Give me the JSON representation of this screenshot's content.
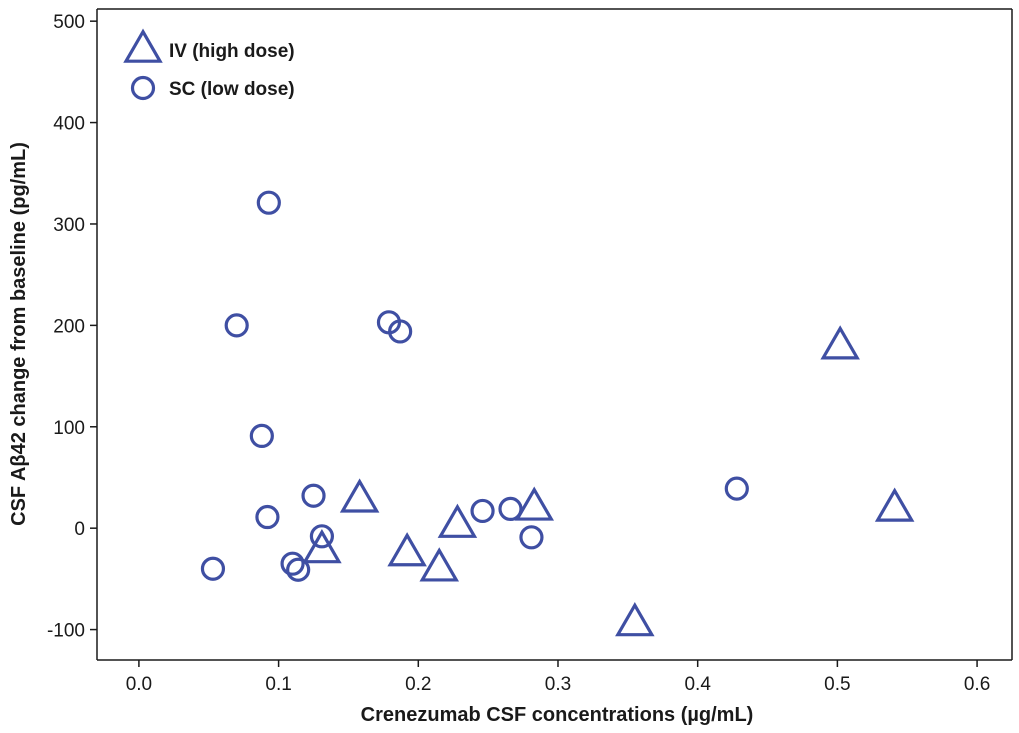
{
  "chart_data": {
    "type": "scatter",
    "xlabel": "Crenezumab CSF concentrations (µg/mL)",
    "ylabel": "CSF Aβ42 change from baseline (pg/mL)",
    "xlim": [
      -0.03,
      0.625
    ],
    "ylim": [
      -130,
      512
    ],
    "x_ticks": [
      0.0,
      0.1,
      0.2,
      0.3,
      0.4,
      0.5,
      0.6
    ],
    "x_tick_labels": [
      "0.0",
      "0.1",
      "0.2",
      "0.3",
      "0.4",
      "0.5",
      "0.6"
    ],
    "y_ticks": [
      -100,
      0,
      100,
      200,
      300,
      400,
      500
    ],
    "y_tick_labels": [
      "-100",
      "0",
      "100",
      "200",
      "300",
      "400",
      "500"
    ],
    "grid": false,
    "legend_position": "top-left",
    "marker_color": "#3f4fa3",
    "series": [
      {
        "name": "IV (high dose)",
        "marker": "triangle",
        "points": [
          {
            "x": 0.158,
            "y": 28
          },
          {
            "x": 0.131,
            "y": -22
          },
          {
            "x": 0.192,
            "y": -25
          },
          {
            "x": 0.215,
            "y": -40
          },
          {
            "x": 0.228,
            "y": 3
          },
          {
            "x": 0.283,
            "y": 20
          },
          {
            "x": 0.355,
            "y": -94
          },
          {
            "x": 0.502,
            "y": 179
          },
          {
            "x": 0.541,
            "y": 19
          }
        ]
      },
      {
        "name": "SC (low dose)",
        "marker": "circle",
        "points": [
          {
            "x": 0.053,
            "y": -40
          },
          {
            "x": 0.07,
            "y": 200
          },
          {
            "x": 0.088,
            "y": 91
          },
          {
            "x": 0.092,
            "y": 11
          },
          {
            "x": 0.093,
            "y": 321
          },
          {
            "x": 0.11,
            "y": -35
          },
          {
            "x": 0.114,
            "y": -41
          },
          {
            "x": 0.125,
            "y": 32
          },
          {
            "x": 0.131,
            "y": -8
          },
          {
            "x": 0.179,
            "y": 203
          },
          {
            "x": 0.187,
            "y": 194
          },
          {
            "x": 0.246,
            "y": 17
          },
          {
            "x": 0.266,
            "y": 19
          },
          {
            "x": 0.281,
            "y": -9
          },
          {
            "x": 0.428,
            "y": 39
          }
        ]
      }
    ]
  }
}
